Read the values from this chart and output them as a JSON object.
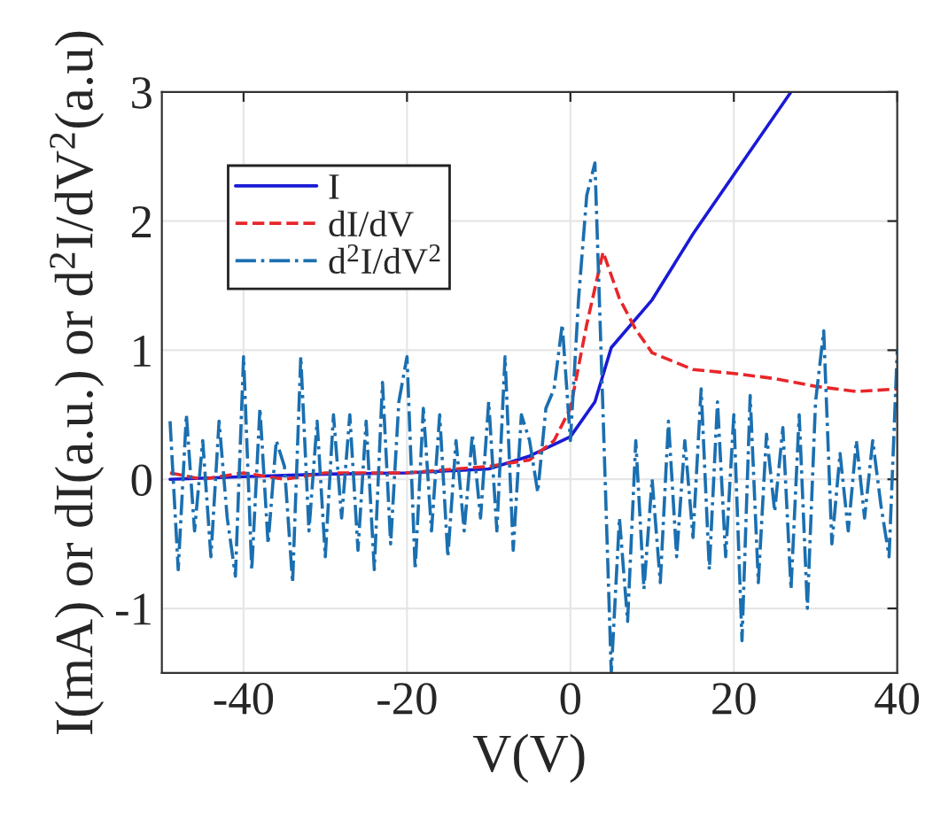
{
  "chart_data": {
    "type": "line",
    "xlabel": "V(V)",
    "ylabel": "I(mA) or dI(a.u.) or d$^{2}$I/dV$^{2}$(a.u)",
    "xlim": [
      -50,
      40
    ],
    "xticks": [
      -40,
      -20,
      0,
      20,
      40
    ],
    "ylim": [
      -1.5,
      3
    ],
    "yticks": [
      -1,
      0,
      1,
      2,
      3
    ],
    "grid": true,
    "legend": "top left",
    "series": [
      {
        "name": "I",
        "color": "#1a1ad6",
        "line_style": "solid",
        "x": [
          -49,
          -40,
          -30,
          -20,
          -10,
          -5,
          0,
          3,
          5,
          10,
          15,
          20,
          27
        ],
        "values": [
          0.0,
          0.02,
          0.04,
          0.05,
          0.08,
          0.18,
          0.33,
          0.6,
          1.02,
          1.39,
          1.9,
          2.36,
          3.0
        ]
      },
      {
        "name": "dI/dV",
        "color": "#e8262a",
        "line_style": "dashed",
        "x": [
          -49,
          -45,
          -40,
          -35,
          -30,
          -20,
          -10,
          -5,
          -2,
          0,
          2,
          4,
          6,
          8,
          10,
          15,
          20,
          25,
          30,
          35,
          40
        ],
        "values": [
          0.05,
          0.0,
          0.05,
          0.0,
          0.05,
          0.05,
          0.1,
          0.15,
          0.3,
          0.55,
          1.2,
          1.76,
          1.4,
          1.16,
          0.98,
          0.85,
          0.82,
          0.78,
          0.72,
          0.68,
          0.7
        ]
      },
      {
        "name": "d$^{2}$I/dV$^{2}$",
        "color": "#1a6fb0",
        "line_style": "dashdot",
        "x": [
          -49,
          -48,
          -47,
          -46,
          -45,
          -44,
          -43,
          -42,
          -41,
          -40,
          -39,
          -38,
          -37,
          -36,
          -35,
          -34,
          -33,
          -32,
          -31,
          -30,
          -29,
          -28,
          -27,
          -26,
          -25,
          -24,
          -23,
          -22,
          -21,
          -20,
          -19,
          -18,
          -17,
          -16,
          -15,
          -14,
          -13,
          -12,
          -11,
          -10,
          -9,
          -8,
          -7,
          -6,
          -5,
          -4,
          -3,
          -2,
          -1,
          0,
          1,
          2,
          3,
          4,
          5,
          6,
          7,
          8,
          9,
          10,
          11,
          12,
          13,
          14,
          15,
          16,
          17,
          18,
          19,
          20,
          21,
          22,
          23,
          24,
          25,
          26,
          27,
          28,
          29,
          30,
          31,
          32,
          33,
          34,
          35,
          36,
          37,
          38,
          39,
          40
        ],
        "values": [
          0.45,
          -0.7,
          0.5,
          -0.4,
          0.3,
          -0.6,
          0.45,
          -0.3,
          -0.75,
          0.95,
          -0.7,
          0.55,
          -0.5,
          0.3,
          0.1,
          -0.8,
          0.95,
          -0.4,
          0.45,
          -0.6,
          0.5,
          -0.3,
          0.5,
          -0.55,
          0.45,
          -0.7,
          0.75,
          -0.5,
          0.6,
          0.95,
          -0.7,
          0.55,
          -0.4,
          0.5,
          -0.6,
          0.3,
          -0.4,
          0.35,
          -0.3,
          0.6,
          -0.4,
          0.95,
          -0.55,
          0.5,
          0.3,
          -0.1,
          0.55,
          0.7,
          1.2,
          0.3,
          1.4,
          2.2,
          2.45,
          0.5,
          -1.5,
          -0.3,
          -1.1,
          0.3,
          -0.85,
          0.0,
          -0.8,
          0.45,
          -0.6,
          0.3,
          -0.45,
          0.7,
          -0.7,
          0.6,
          -0.6,
          0.5,
          -1.25,
          0.65,
          -0.8,
          0.35,
          -0.25,
          0.4,
          -0.85,
          0.5,
          -1.0,
          0.6,
          1.15,
          -0.5,
          0.2,
          -0.4,
          0.3,
          -0.3,
          0.3,
          -0.2,
          -0.6,
          1.0
        ]
      }
    ]
  }
}
